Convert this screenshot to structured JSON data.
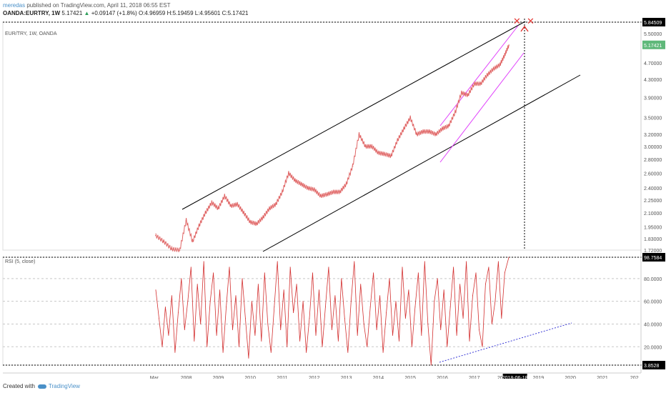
{
  "header": {
    "user": "meredas",
    "published": "published on TradingView.com, April 11, 2018 06:55 EST",
    "symbol": "OANDA:EURTRY, 1W",
    "last": "5.17421",
    "change": "+0.09147 (+1.8%)",
    "open": "O:4.96959",
    "high": "H:5.19459",
    "low": "L:4.95601",
    "close": "C:5.17421"
  },
  "main_legend": "EUR/TRY, 1W, OANDA",
  "rsi_legend": "RSI (5, close)",
  "footer": {
    "created_with": "Created with",
    "brand": "TradingView"
  },
  "colors": {
    "price": "#e06666",
    "rsi": "#d32f2f",
    "channel": "#000000",
    "magenta": "#e040fb",
    "dotted": "#3a3ad6",
    "last_badge": "#5fb87a",
    "marker": "#e53935"
  },
  "chart_data": [
    {
      "type": "line",
      "title": "EUR/TRY, 1W, OANDA",
      "x_axis_labels": [
        "Mar",
        "2008",
        "2009",
        "2010",
        "2011",
        "2012",
        "2013",
        "2014",
        "2015",
        "2016",
        "2017",
        "201",
        "2018-06-18",
        "2019",
        "2020",
        "2021",
        "202"
      ],
      "y_axis_labels": [
        "5.84509",
        "5.50000",
        "5.17421",
        "4.70000",
        "4.30000",
        "3.90000",
        "3.50000",
        "3.20000",
        "3.00000",
        "2.80000",
        "2.60000",
        "2.40000",
        "2.25000",
        "2.10000",
        "1.95000",
        "1.83000",
        "1.72000"
      ],
      "y_scale": "log",
      "last_value": "5.17421",
      "top_marker_value": "5.84509",
      "marker_date": "2018-06-18",
      "series": [
        {
          "x": [
            2007.25,
            2007.5,
            2007.75,
            2008.0,
            2008.2,
            2008.4,
            2008.6,
            2008.8,
            2009.0,
            2009.2,
            2009.4,
            2009.6,
            2009.8,
            2010.0,
            2010.2,
            2010.4,
            2010.6,
            2010.8,
            2011.0,
            2011.2,
            2011.4,
            2011.6,
            2011.8,
            2012.0,
            2012.2,
            2012.4,
            2012.6,
            2012.8,
            2013.0,
            2013.2,
            2013.4,
            2013.6,
            2013.8,
            2014.0,
            2014.2,
            2014.4,
            2014.6,
            2014.8,
            2015.0,
            2015.2,
            2015.4,
            2015.6,
            2015.8,
            2016.0,
            2016.2,
            2016.4,
            2016.6,
            2016.8,
            2017.0,
            2017.2,
            2017.4,
            2017.6,
            2017.8,
            2018.0,
            2018.15,
            2018.28
          ],
          "values": [
            1.86,
            1.8,
            1.73,
            1.72,
            2.02,
            1.8,
            1.96,
            2.1,
            2.22,
            2.15,
            2.3,
            2.18,
            2.2,
            2.1,
            2.0,
            1.98,
            2.05,
            2.15,
            2.2,
            2.35,
            2.6,
            2.5,
            2.45,
            2.4,
            2.38,
            2.3,
            2.32,
            2.35,
            2.35,
            2.45,
            2.7,
            3.2,
            3.0,
            3.0,
            2.9,
            2.88,
            2.85,
            3.1,
            3.3,
            3.5,
            3.2,
            3.25,
            3.25,
            3.2,
            3.3,
            3.35,
            3.6,
            4.0,
            3.95,
            4.2,
            4.2,
            4.4,
            4.55,
            4.65,
            4.9,
            5.17
          ]
        }
      ]
    },
    {
      "type": "line",
      "title": "RSI (5, close)",
      "y_axis_labels": [
        "98.7584",
        "80.0000",
        "60.0000",
        "40.0000",
        "20.0000",
        "3.8528"
      ],
      "series": [
        {
          "x": [
            2007.25,
            2007.35,
            2007.45,
            2007.55,
            2007.65,
            2007.75,
            2007.85,
            2007.95,
            2008.05,
            2008.15,
            2008.25,
            2008.35,
            2008.45,
            2008.55,
            2008.65,
            2008.75,
            2008.85,
            2008.95,
            2009.05,
            2009.15,
            2009.25,
            2009.35,
            2009.45,
            2009.55,
            2009.65,
            2009.75,
            2009.85,
            2009.95,
            2010.05,
            2010.15,
            2010.25,
            2010.35,
            2010.45,
            2010.55,
            2010.65,
            2010.75,
            2010.85,
            2010.95,
            2011.05,
            2011.15,
            2011.25,
            2011.35,
            2011.45,
            2011.55,
            2011.65,
            2011.75,
            2011.85,
            2011.95,
            2012.05,
            2012.15,
            2012.25,
            2012.35,
            2012.45,
            2012.55,
            2012.65,
            2012.75,
            2012.85,
            2012.95,
            2013.05,
            2013.15,
            2013.25,
            2013.35,
            2013.45,
            2013.55,
            2013.65,
            2013.75,
            2013.85,
            2013.95,
            2014.05,
            2014.15,
            2014.25,
            2014.35,
            2014.45,
            2014.55,
            2014.65,
            2014.75,
            2014.85,
            2014.95,
            2015.05,
            2015.15,
            2015.25,
            2015.35,
            2015.45,
            2015.55,
            2015.65,
            2015.75,
            2015.85,
            2015.95,
            2016.05,
            2016.15,
            2016.25,
            2016.35,
            2016.45,
            2016.55,
            2016.65,
            2016.75,
            2016.85,
            2016.95,
            2017.05,
            2017.15,
            2017.25,
            2017.35,
            2017.45,
            2017.55,
            2017.65,
            2017.75,
            2017.85,
            2017.95,
            2018.05,
            2018.15,
            2018.28
          ],
          "values": [
            70,
            45,
            20,
            55,
            30,
            65,
            15,
            50,
            80,
            35,
            60,
            90,
            25,
            75,
            40,
            95,
            20,
            60,
            85,
            30,
            70,
            15,
            55,
            90,
            35,
            65,
            20,
            80,
            45,
            10,
            60,
            30,
            75,
            25,
            85,
            40,
            15,
            55,
            95,
            35,
            70,
            20,
            90,
            50,
            75,
            25,
            60,
            15,
            45,
            85,
            30,
            70,
            20,
            55,
            90,
            35,
            65,
            25,
            80,
            45,
            15,
            60,
            95,
            30,
            75,
            40,
            20,
            55,
            85,
            35,
            65,
            15,
            50,
            80,
            30,
            60,
            25,
            90,
            45,
            70,
            20,
            55,
            85,
            30,
            95,
            40,
            3.9,
            60,
            80,
            35,
            70,
            20,
            55,
            90,
            30,
            75,
            45,
            95,
            25,
            65,
            85,
            35,
            20,
            75,
            90,
            40,
            60,
            95,
            45,
            85,
            98.8
          ]
        }
      ]
    }
  ]
}
